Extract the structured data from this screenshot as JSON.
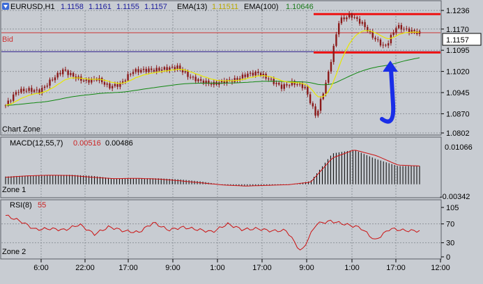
{
  "header": {
    "symbol": "EURUSD,H1",
    "ohlc": [
      "1.1158",
      "1.1161",
      "1.1155",
      "1.1157"
    ],
    "ema13_label": "EMA(13)",
    "ema13_value": "1.11511",
    "ema100_label": "EMA(100)",
    "ema100_value": "1.10646"
  },
  "colors": {
    "panel_bg": "#c8ccd2",
    "grid": "#8e939a",
    "candle": "#8b1a1a",
    "ema13": "#e8e800",
    "ema100": "#118811",
    "bid_line": "#cc3333",
    "level_line": "#ee1111",
    "marker_line": "#2a1a8a",
    "arrow": "#1a2ee8",
    "macd_hist": "#000000",
    "macd_signal": "#cc1111",
    "rsi_line": "#cc1111",
    "value_blue": "#1a1a9a",
    "value_yellow": "#b8a800",
    "value_green": "#1a7a1a",
    "value_red": "#cc2222"
  },
  "zones": {
    "chart": "Chart Zone",
    "zone1": "Zone 1",
    "zone2": "Zone 2"
  },
  "price_axis": {
    "ticks": [
      "1.1236",
      "1.1170",
      "1.1095",
      "1.1020",
      "1.0945",
      "1.0870",
      "1.0802"
    ],
    "bid_label": "Bid",
    "bid_value": "1.1157"
  },
  "macd": {
    "label": "MACD(12,55,7)",
    "value1": "0.00516",
    "value2": "0.00486",
    "top_tick": "0.01066",
    "bottom_tick": "-0.00342"
  },
  "rsi": {
    "label": "RSI(8)",
    "value": "55",
    "ticks": [
      "105",
      "70",
      "30",
      "0"
    ]
  },
  "time_axis": [
    "6:00",
    "22:00",
    "17:00",
    "9:00",
    "1:00",
    "17:00",
    "9:00",
    "1:00",
    "17:00",
    "12:00"
  ],
  "chart_data": [
    {
      "type": "candlestick",
      "title": "EURUSD,H1",
      "ylim": [
        1.0802,
        1.1236
      ],
      "series": [
        {
          "name": "EMA(13)",
          "last": 1.11511
        },
        {
          "name": "EMA(100)",
          "last": 1.10646
        }
      ],
      "close_sampled": [
        1.09,
        1.095,
        1.0955,
        1.095,
        1.099,
        1.1025,
        1.1,
        1.0985,
        1.0995,
        1.0965,
        1.0975,
        1.102,
        1.1025,
        1.1025,
        1.103,
        1.1035,
        1.1,
        1.0985,
        1.0975,
        1.0985,
        1.099,
        1.101,
        1.1015,
        1.099,
        1.0965,
        1.098,
        1.0965,
        1.086,
        1.1,
        1.12,
        1.122,
        1.119,
        1.114,
        1.1105,
        1.118,
        1.1165,
        1.1157
      ],
      "levels": [
        1.1223,
        1.1087
      ],
      "bid": 1.1157
    },
    {
      "type": "bar",
      "title": "MACD(12,55,7)",
      "ylim": [
        -0.00342,
        0.01066
      ],
      "values_sampled": [
        0.0022,
        0.0025,
        0.0026,
        0.0027,
        0.0024,
        0.0016,
        0.0017,
        0.0017,
        0.0014,
        0.0008,
        -0.0002,
        -0.0004,
        -0.0003,
        -0.0002,
        0.0009,
        0.0088,
        0.0098,
        0.0072,
        0.0052,
        0.0052
      ],
      "series": [
        {
          "name": "signal",
          "values_sampled": [
            0.002,
            0.0024,
            0.0026,
            0.0025,
            0.002,
            0.0016,
            0.0017,
            0.0015,
            0.001,
            0.0004,
            -0.0002,
            -0.0005,
            -0.0003,
            -0.0001,
            0.0006,
            0.0075,
            0.0098,
            0.0082,
            0.0055,
            0.0052
          ]
        }
      ],
      "latest": [
        0.00516,
        0.00486
      ]
    },
    {
      "type": "line",
      "title": "RSI(8)",
      "ylim": [
        0,
        105
      ],
      "values_sampled": [
        88,
        76,
        58,
        60,
        57,
        69,
        48,
        64,
        55,
        52,
        73,
        57,
        63,
        58,
        53,
        70,
        58,
        60,
        55,
        56,
        10,
        70,
        76,
        69,
        62,
        35,
        60,
        56,
        55
      ],
      "latest": 55
    }
  ]
}
